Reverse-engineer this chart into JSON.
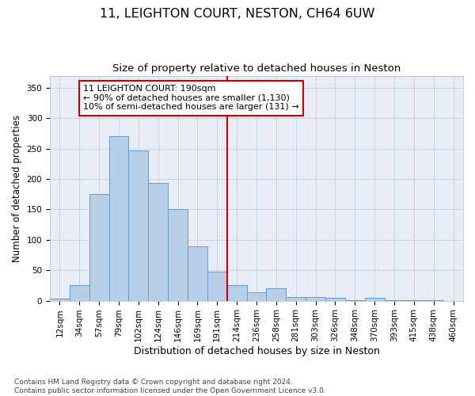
{
  "title": "11, LEIGHTON COURT, NESTON, CH64 6UW",
  "subtitle": "Size of property relative to detached houses in Neston",
  "xlabel": "Distribution of detached houses by size in Neston",
  "ylabel": "Number of detached properties",
  "bar_labels": [
    "12sqm",
    "34sqm",
    "57sqm",
    "79sqm",
    "102sqm",
    "124sqm",
    "146sqm",
    "169sqm",
    "191sqm",
    "214sqm",
    "236sqm",
    "258sqm",
    "281sqm",
    "303sqm",
    "326sqm",
    "348sqm",
    "370sqm",
    "393sqm",
    "415sqm",
    "438sqm",
    "460sqm"
  ],
  "bar_values": [
    3,
    25,
    175,
    270,
    247,
    193,
    150,
    90,
    48,
    26,
    14,
    20,
    6,
    6,
    5,
    1,
    5,
    1,
    1,
    1,
    0
  ],
  "bar_color": "#b8cfe8",
  "bar_edge_color": "#6699cc",
  "vline_x_index": 8,
  "vline_color": "#cc0000",
  "annotation_text": "11 LEIGHTON COURT: 190sqm\n← 90% of detached houses are smaller (1,130)\n10% of semi-detached houses are larger (131) →",
  "annotation_box_color": "#cc0000",
  "ylim": [
    0,
    370
  ],
  "yticks": [
    0,
    50,
    100,
    150,
    200,
    250,
    300,
    350
  ],
  "grid_color": "#c8d4e8",
  "bg_color": "#e8edf5",
  "footnote": "Contains HM Land Registry data © Crown copyright and database right 2024.\nContains public sector information licensed under the Open Government Licence v3.0.",
  "title_fontsize": 11.5,
  "subtitle_fontsize": 9.5,
  "xlabel_fontsize": 9,
  "ylabel_fontsize": 8.5,
  "tick_fontsize": 7.5,
  "annot_fontsize": 8,
  "footnote_fontsize": 6.5
}
